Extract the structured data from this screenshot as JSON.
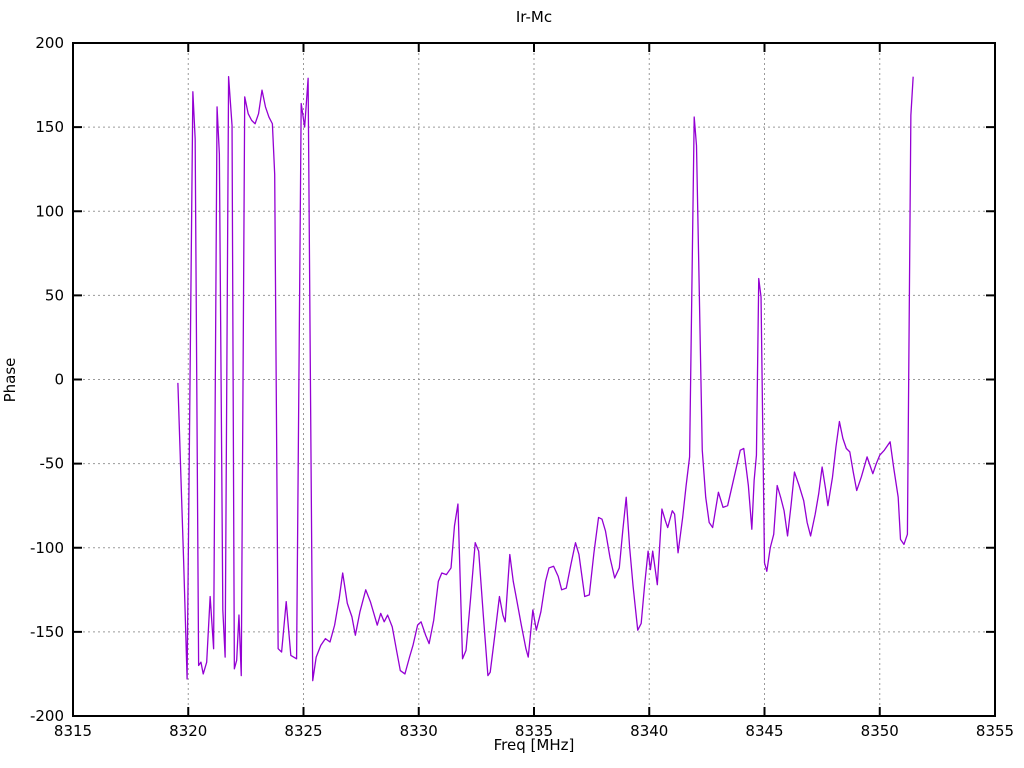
{
  "title": "Ir-Mc",
  "colors": {
    "background": "#ffffff",
    "border": "#000000",
    "grid": "#9a9a9a",
    "text": "#000000",
    "line": "#9400d3"
  },
  "chart_data": {
    "type": "line",
    "title": "Ir-Mc",
    "xlabel": "Freq [MHz]",
    "ylabel": "Phase",
    "xlim": [
      8315,
      8355
    ],
    "ylim": [
      -200,
      200
    ],
    "xticks": [
      8315,
      8320,
      8325,
      8330,
      8335,
      8340,
      8345,
      8350,
      8355
    ],
    "yticks": [
      -200,
      -150,
      -100,
      -50,
      0,
      50,
      100,
      150,
      200
    ],
    "grid": "dotted",
    "legend": "none",
    "line_color": "#9400d3",
    "series": [
      {
        "name": "Ir-Mc",
        "points": [
          [
            8319.55,
            -2
          ],
          [
            8319.8,
            -108
          ],
          [
            8319.95,
            -178
          ],
          [
            8320.2,
            171
          ],
          [
            8320.3,
            143
          ],
          [
            8320.45,
            -170
          ],
          [
            8320.55,
            -168
          ],
          [
            8320.65,
            -175
          ],
          [
            8320.8,
            -168
          ],
          [
            8320.95,
            -129
          ],
          [
            8321.1,
            -160
          ],
          [
            8321.25,
            162
          ],
          [
            8321.35,
            134
          ],
          [
            8321.5,
            -137
          ],
          [
            8321.6,
            -165
          ],
          [
            8321.75,
            180
          ],
          [
            8321.9,
            151
          ],
          [
            8322.0,
            -172
          ],
          [
            8322.1,
            -167
          ],
          [
            8322.2,
            -140
          ],
          [
            8322.3,
            -176
          ],
          [
            8322.45,
            168
          ],
          [
            8322.6,
            158
          ],
          [
            8322.75,
            154
          ],
          [
            8322.9,
            152
          ],
          [
            8323.05,
            158
          ],
          [
            8323.2,
            172
          ],
          [
            8323.35,
            162
          ],
          [
            8323.5,
            156
          ],
          [
            8323.65,
            152
          ],
          [
            8323.75,
            122
          ],
          [
            8323.9,
            -160
          ],
          [
            8324.05,
            -162
          ],
          [
            8324.25,
            -132
          ],
          [
            8324.45,
            -164
          ],
          [
            8324.7,
            -166
          ],
          [
            8324.9,
            164
          ],
          [
            8325.05,
            150
          ],
          [
            8325.2,
            179
          ],
          [
            8325.4,
            -179
          ],
          [
            8325.55,
            -165
          ],
          [
            8325.75,
            -158
          ],
          [
            8325.95,
            -154
          ],
          [
            8326.15,
            -156
          ],
          [
            8326.35,
            -146
          ],
          [
            8326.55,
            -130
          ],
          [
            8326.7,
            -115
          ],
          [
            8326.9,
            -133
          ],
          [
            8327.1,
            -141
          ],
          [
            8327.25,
            -152
          ],
          [
            8327.45,
            -138
          ],
          [
            8327.7,
            -125
          ],
          [
            8327.9,
            -132
          ],
          [
            8328.05,
            -139
          ],
          [
            8328.2,
            -146
          ],
          [
            8328.35,
            -139
          ],
          [
            8328.5,
            -144
          ],
          [
            8328.65,
            -140
          ],
          [
            8328.85,
            -147
          ],
          [
            8329.05,
            -162
          ],
          [
            8329.2,
            -173
          ],
          [
            8329.4,
            -175
          ],
          [
            8329.6,
            -165
          ],
          [
            8329.75,
            -158
          ],
          [
            8329.95,
            -146
          ],
          [
            8330.1,
            -144
          ],
          [
            8330.3,
            -152
          ],
          [
            8330.45,
            -157
          ],
          [
            8330.65,
            -143
          ],
          [
            8330.85,
            -120
          ],
          [
            8331.0,
            -115
          ],
          [
            8331.2,
            -116
          ],
          [
            8331.4,
            -112
          ],
          [
            8331.55,
            -87
          ],
          [
            8331.7,
            -74
          ],
          [
            8331.9,
            -166
          ],
          [
            8332.05,
            -161
          ],
          [
            8332.25,
            -130
          ],
          [
            8332.45,
            -97
          ],
          [
            8332.6,
            -102
          ],
          [
            8332.8,
            -140
          ],
          [
            8333.0,
            -176
          ],
          [
            8333.1,
            -174
          ],
          [
            8333.3,
            -152
          ],
          [
            8333.5,
            -129
          ],
          [
            8333.65,
            -140
          ],
          [
            8333.75,
            -144
          ],
          [
            8333.95,
            -104
          ],
          [
            8334.1,
            -120
          ],
          [
            8334.25,
            -131
          ],
          [
            8334.45,
            -146
          ],
          [
            8334.65,
            -160
          ],
          [
            8334.75,
            -165
          ],
          [
            8334.95,
            -137
          ],
          [
            8335.1,
            -149
          ],
          [
            8335.3,
            -138
          ],
          [
            8335.5,
            -120
          ],
          [
            8335.65,
            -112
          ],
          [
            8335.85,
            -111
          ],
          [
            8336.05,
            -117
          ],
          [
            8336.2,
            -125
          ],
          [
            8336.4,
            -124
          ],
          [
            8336.6,
            -110
          ],
          [
            8336.8,
            -97
          ],
          [
            8336.95,
            -104
          ],
          [
            8337.2,
            -129
          ],
          [
            8337.4,
            -128
          ],
          [
            8337.6,
            -103
          ],
          [
            8337.8,
            -82
          ],
          [
            8337.95,
            -83
          ],
          [
            8338.1,
            -90
          ],
          [
            8338.3,
            -106
          ],
          [
            8338.5,
            -118
          ],
          [
            8338.7,
            -112
          ],
          [
            8338.85,
            -90
          ],
          [
            8339.0,
            -70
          ],
          [
            8339.15,
            -100
          ],
          [
            8339.3,
            -123
          ],
          [
            8339.5,
            -149
          ],
          [
            8339.65,
            -145
          ],
          [
            8339.8,
            -122
          ],
          [
            8339.95,
            -102
          ],
          [
            8340.05,
            -113
          ],
          [
            8340.15,
            -102
          ],
          [
            8340.35,
            -122
          ],
          [
            8340.55,
            -77
          ],
          [
            8340.7,
            -84
          ],
          [
            8340.8,
            -88
          ],
          [
            8341.0,
            -78
          ],
          [
            8341.1,
            -80
          ],
          [
            8341.25,
            -103
          ],
          [
            8341.45,
            -82
          ],
          [
            8341.6,
            -63
          ],
          [
            8341.75,
            -46
          ],
          [
            8341.95,
            156
          ],
          [
            8342.05,
            139
          ],
          [
            8342.15,
            67
          ],
          [
            8342.3,
            -42
          ],
          [
            8342.45,
            -70
          ],
          [
            8342.6,
            -85
          ],
          [
            8342.75,
            -88
          ],
          [
            8343.0,
            -67
          ],
          [
            8343.2,
            -76
          ],
          [
            8343.4,
            -75
          ],
          [
            8343.65,
            -60
          ],
          [
            8343.95,
            -42
          ],
          [
            8344.1,
            -41
          ],
          [
            8344.2,
            -52
          ],
          [
            8344.3,
            -63
          ],
          [
            8344.45,
            -89
          ],
          [
            8344.55,
            -60
          ],
          [
            8344.65,
            -45
          ],
          [
            8344.75,
            60
          ],
          [
            8344.85,
            49
          ],
          [
            8345.0,
            -109
          ],
          [
            8345.1,
            -114
          ],
          [
            8345.25,
            -100
          ],
          [
            8345.4,
            -92
          ],
          [
            8345.55,
            -63
          ],
          [
            8345.7,
            -70
          ],
          [
            8345.85,
            -78
          ],
          [
            8346.0,
            -93
          ],
          [
            8346.15,
            -75
          ],
          [
            8346.3,
            -55
          ],
          [
            8346.5,
            -63
          ],
          [
            8346.7,
            -72
          ],
          [
            8346.85,
            -85
          ],
          [
            8347.0,
            -93
          ],
          [
            8347.2,
            -80
          ],
          [
            8347.35,
            -68
          ],
          [
            8347.5,
            -52
          ],
          [
            8347.65,
            -65
          ],
          [
            8347.75,
            -75
          ],
          [
            8347.95,
            -58
          ],
          [
            8348.1,
            -40
          ],
          [
            8348.25,
            -25
          ],
          [
            8348.4,
            -35
          ],
          [
            8348.55,
            -41
          ],
          [
            8348.7,
            -43
          ],
          [
            8348.85,
            -55
          ],
          [
            8349.0,
            -66
          ],
          [
            8349.2,
            -58
          ],
          [
            8349.45,
            -46
          ],
          [
            8349.6,
            -52
          ],
          [
            8349.7,
            -56
          ],
          [
            8349.85,
            -50
          ],
          [
            8350.0,
            -45
          ],
          [
            8350.2,
            -42
          ],
          [
            8350.45,
            -37
          ],
          [
            8350.6,
            -52
          ],
          [
            8350.8,
            -70
          ],
          [
            8350.9,
            -95
          ],
          [
            8351.05,
            -98
          ],
          [
            8351.2,
            -92
          ],
          [
            8351.35,
            157
          ],
          [
            8351.45,
            180
          ]
        ]
      }
    ]
  }
}
